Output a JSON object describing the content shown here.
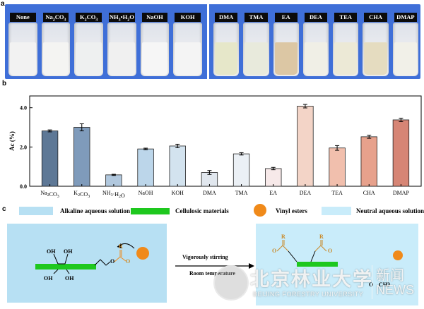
{
  "panels": {
    "a": "a",
    "b": "b",
    "c": "c"
  },
  "photo": {
    "group1": [
      "None",
      "Na2CO3",
      "K2CO3",
      "NH3•H2O",
      "NaOH",
      "KOH"
    ],
    "group2": [
      "DMA",
      "TMA",
      "EA",
      "DEA",
      "TEA",
      "CHA",
      "DMAP"
    ],
    "liquid_colors": [
      "#f2f2f2",
      "#f4f4f2",
      "#eef0f0",
      "#f0f0f0",
      "#f6f6f6",
      "#f4f4f4",
      "#e6e7c9",
      "#e8eadc",
      "#dcc7a4",
      "#f0efe6",
      "#ece9d6",
      "#e5dcc0",
      "#f1f0e8"
    ]
  },
  "chart_data": {
    "type": "bar",
    "ylabel": "Ac (%)",
    "ylim": [
      0,
      4.6
    ],
    "yticks": [
      "0.0",
      "2.0",
      "4.0"
    ],
    "categories": [
      "Na2CO3",
      "K2CO3",
      "NH3·H2O",
      "NaOH",
      "KOH",
      "DMA",
      "TMA",
      "EA",
      "DEA",
      "TEA",
      "CHA",
      "DMAP"
    ],
    "values": [
      2.82,
      3.0,
      0.58,
      1.9,
      2.05,
      0.7,
      1.65,
      0.9,
      4.08,
      1.95,
      2.52,
      3.38
    ],
    "errors": [
      0.05,
      0.18,
      0.03,
      0.04,
      0.09,
      0.1,
      0.06,
      0.06,
      0.09,
      0.12,
      0.08,
      0.09
    ],
    "colors": [
      "#5e7896",
      "#7f9bbb",
      "#b1c8de",
      "#bcd6ea",
      "#d3e3ef",
      "#e1e7ee",
      "#ebf0f5",
      "#f7e9e9",
      "#f3d4c7",
      "#f1bfad",
      "#e7a18c",
      "#d68575"
    ]
  },
  "legend": {
    "alkaline": "Alkaline aqueous solution",
    "cellulosic": "Cellulosic materials",
    "vinyl": "Vinyl esters",
    "neutral": "Neutral aqueous solution"
  },
  "scheme": {
    "stirring": "Vigorously stirring",
    "room_temp": "Room temperature",
    "oh_labels": [
      "OH",
      "OH",
      "OH",
      "OH"
    ],
    "r_labels": [
      "R",
      "R",
      "R"
    ],
    "o_labels": [
      "O",
      "O",
      "O",
      "O",
      "O"
    ],
    "ch_label": "CH3"
  },
  "watermark": {
    "name_cn": "北京林业大学",
    "name_en": "BEIJING FORESTRY UNIVERSITY",
    "news_cn": "新闻",
    "news_en": "NEWS"
  },
  "colors": {
    "photo_bg": "#3f6fd8",
    "cellulose": "#1ec81e",
    "vinyl": "#f08a1a"
  }
}
